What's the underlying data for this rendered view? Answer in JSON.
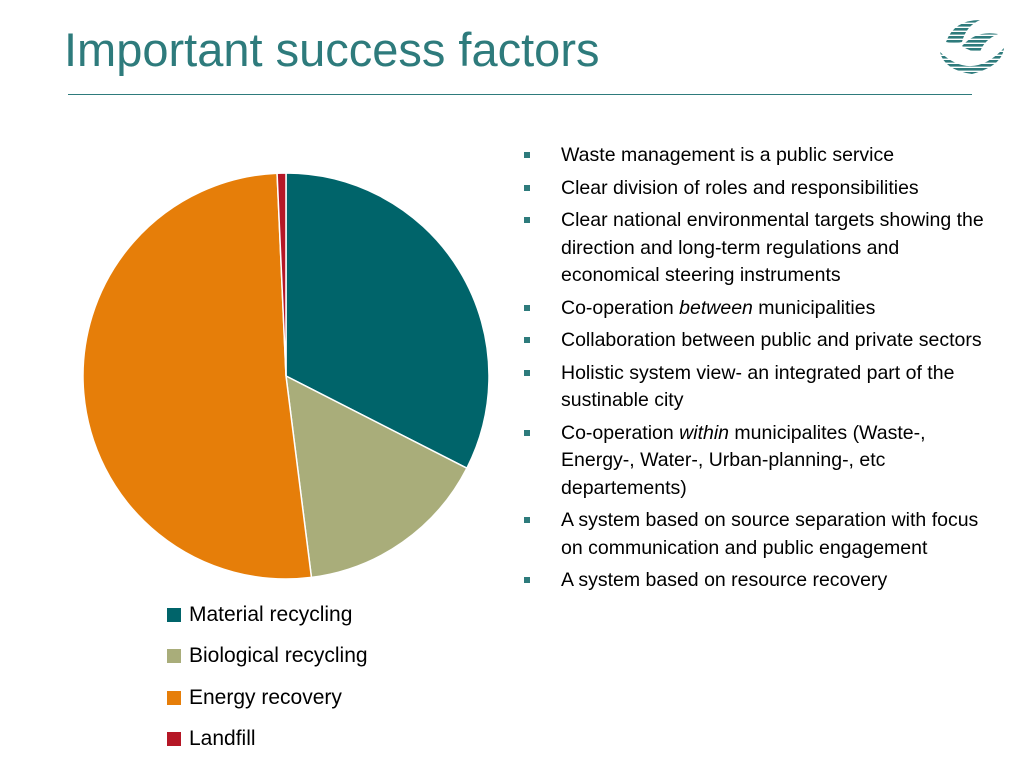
{
  "slide": {
    "title": "Important success factors"
  },
  "colors": {
    "accent": "#2e7b7c",
    "material": "#00646a",
    "biological": "#a9ad7a",
    "energy": "#e67e09",
    "landfill": "#b51726"
  },
  "chart_data": {
    "type": "pie",
    "categories": [
      "Material recycling",
      "Biological recycling",
      "Energy recovery",
      "Landfill"
    ],
    "values": [
      32.5,
      15.5,
      51.3,
      0.7
    ],
    "colors": [
      "#00646a",
      "#a9ad7a",
      "#e67e09",
      "#b51726"
    ],
    "legend_position": "bottom"
  },
  "bullets": [
    {
      "parts": [
        {
          "text": "Waste management is a public service"
        }
      ]
    },
    {
      "parts": [
        {
          "text": "Clear division of roles and responsibilities"
        }
      ]
    },
    {
      "parts": [
        {
          "text": "Clear national environmental targets showing the direction and long-term regulations and economical steering instruments"
        }
      ]
    },
    {
      "parts": [
        {
          "text": "Co-operation "
        },
        {
          "text": "between",
          "italic": true
        },
        {
          "text": " municipalities"
        }
      ]
    },
    {
      "parts": [
        {
          "text": "Collaboration between public and private sectors"
        }
      ]
    },
    {
      "parts": [
        {
          "text": "Holistic system view- an integrated part of the sustinable city"
        }
      ]
    },
    {
      "parts": [
        {
          "text": "Co-operation "
        },
        {
          "text": "within",
          "italic": true
        },
        {
          "text": " municipalites (Waste-, Energy-, Water-, Urban-planning-, etc departements)"
        }
      ]
    },
    {
      "parts": [
        {
          "text": "A system based on source separation with focus on communication and public engagement"
        }
      ]
    },
    {
      "parts": [
        {
          "text": "A system based on resource recovery"
        }
      ]
    }
  ],
  "logo": {
    "icon": "swirl-logo-icon"
  }
}
